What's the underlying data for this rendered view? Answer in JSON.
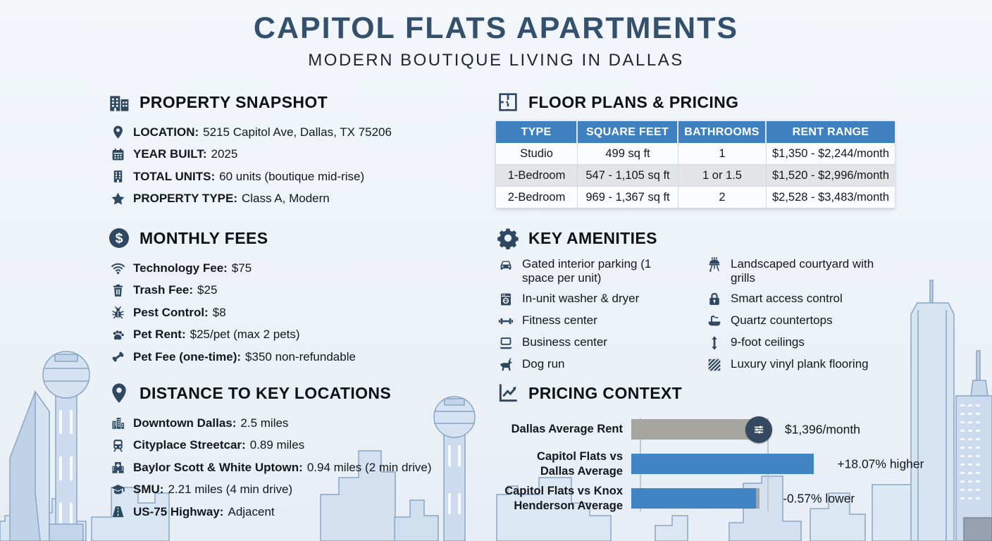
{
  "header": {
    "title": "CAPITOL FLATS APARTMENTS",
    "subtitle": "MODERN BOUTIQUE LIVING IN DALLAS"
  },
  "property_snapshot": {
    "icon": "buildings",
    "title": "PROPERTY SNAPSHOT",
    "items": [
      {
        "icon": "map-pin",
        "label": "LOCATION:",
        "value": "5215 Capitol Ave, Dallas, TX 75206"
      },
      {
        "icon": "calendar",
        "label": "YEAR BUILT:",
        "value": "2025"
      },
      {
        "icon": "building",
        "label": "TOTAL UNITS:",
        "value": "60 units (boutique mid-rise)"
      },
      {
        "icon": "star",
        "label": "PROPERTY TYPE:",
        "value": "Class A, Modern"
      }
    ]
  },
  "monthly_fees": {
    "icon": "dollar-circle",
    "title": "MONTHLY FEES",
    "items": [
      {
        "icon": "wifi",
        "label": "Technology Fee:",
        "value": "$75"
      },
      {
        "icon": "trash",
        "label": "Trash Fee:",
        "value": "$25"
      },
      {
        "icon": "bug",
        "label": "Pest Control:",
        "value": "$8"
      },
      {
        "icon": "paw",
        "label": "Pet Rent:",
        "value": "$25/pet (max 2 pets)"
      },
      {
        "icon": "bone",
        "label": "Pet Fee (one-time):",
        "value": "$350 non-refundable"
      }
    ]
  },
  "distances": {
    "icon": "map-pin",
    "title": "DISTANCE TO KEY LOCATIONS",
    "items": [
      {
        "icon": "city",
        "label": "Downtown Dallas:",
        "value": "2.5 miles"
      },
      {
        "icon": "train",
        "label": "Cityplace Streetcar:",
        "value": "0.89 miles"
      },
      {
        "icon": "hospital",
        "label": "Baylor Scott & White Uptown:",
        "value": "0.94 miles (2 min drive)"
      },
      {
        "icon": "graduation-cap",
        "label": "SMU:",
        "value": "2.21 miles (4 min drive)"
      },
      {
        "icon": "road",
        "label": "US-75 Highway:",
        "value": "Adjacent"
      }
    ]
  },
  "floor_plans": {
    "icon": "floor-plan",
    "title": "FLOOR PLANS & PRICING",
    "columns": [
      "TYPE",
      "SQUARE FEET",
      "BATHROOMS",
      "RENT RANGE"
    ],
    "rows": [
      [
        "Studio",
        "499 sq ft",
        "1",
        "$1,350 - $2,244/month"
      ],
      [
        "1-Bedroom",
        "547 - 1,105 sq ft",
        "1 or 1.5",
        "$1,520 - $2,996/month"
      ],
      [
        "2-Bedroom",
        "969 - 1,367 sq ft",
        "2",
        "$2,528 - $3,483/month"
      ]
    ]
  },
  "amenities": {
    "icon": "gear",
    "title": "KEY AMENITIES",
    "left": [
      {
        "icon": "car",
        "label": "Gated interior parking (1 space per unit)"
      },
      {
        "icon": "washer",
        "label": "In-unit washer & dryer"
      },
      {
        "icon": "dumbbell",
        "label": "Fitness center"
      },
      {
        "icon": "laptop",
        "label": "Business center"
      },
      {
        "icon": "dog",
        "label": "Dog run"
      }
    ],
    "right": [
      {
        "icon": "grill",
        "label": "Landscaped courtyard with grills"
      },
      {
        "icon": "lock",
        "label": "Smart access control"
      },
      {
        "icon": "sink",
        "label": "Quartz countertops"
      },
      {
        "icon": "arrows-vertical",
        "label": "9-foot ceilings"
      },
      {
        "icon": "flooring",
        "label": "Luxury vinyl plank flooring"
      }
    ]
  },
  "pricing_context": {
    "icon": "chart-line",
    "title": "PRICING CONTEXT",
    "chart_data": {
      "type": "bar",
      "orientation": "horizontal",
      "grid": false,
      "legend": false,
      "baseline_pct": 64.5,
      "categories": [
        "Dallas Average Rent",
        "Capitol Flats vs Dallas Average",
        "Capitol Flats vs Knox Henderson Average"
      ],
      "values": [
        1396,
        18.07,
        -0.57
      ],
      "units": [
        "$/month",
        "%",
        "%"
      ],
      "rows": [
        {
          "label": "Dallas Average Rent",
          "value": 1396,
          "value_label": "$1,396/month",
          "bar_pct": 61,
          "color": "#a7a5a0",
          "end_icon": "sliders",
          "value_left_pct": 74
        },
        {
          "label": "Capitol Flats vs\nDallas Average",
          "value": 18.07,
          "value_label": "+18.07% higher",
          "bar_pct": 92,
          "color": "#4285c4",
          "value_left_pct": 100.5
        },
        {
          "label": "Capitol Flats vs Knox\nHenderson Average",
          "value": -0.57,
          "value_label": "-0.57% lower",
          "bar_pct": 63,
          "color": "#4285c4",
          "stub_left_pct": 63,
          "stub_width_pct": 1.8,
          "value_left_pct": 73
        }
      ]
    }
  },
  "colors": {
    "title": "#34506c",
    "accent_navy": "#2d4860",
    "table_header": "#3f80c1",
    "bar_blue": "#4285c4",
    "bar_gray": "#a7a5a0",
    "circle_navy": "#34495f",
    "skyline_fill": "#cfdfee",
    "skyline_stroke": "#8aa6c4"
  }
}
